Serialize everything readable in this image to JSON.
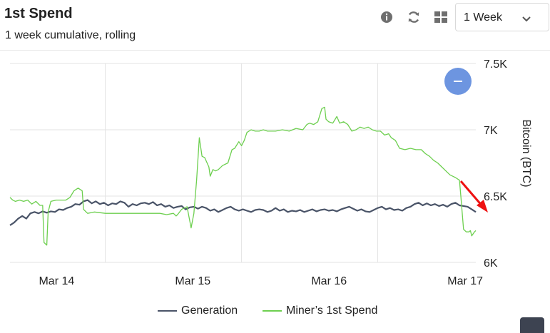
{
  "header": {
    "title": "1st Spend",
    "subtitle": "1 week cumulative, rolling"
  },
  "toolbar": {
    "info_icon": "info-icon",
    "refresh_icon": "refresh-icon",
    "grid_icon": "grid-icon",
    "range_select": {
      "value": "1 Week",
      "icon": "chevron-down-icon"
    }
  },
  "colors": {
    "generation": "#4a5468",
    "miner_first_spend": "#6dcf4f",
    "grid": "#e3e3e3",
    "zoom_button": "#6d95e0",
    "annotation_arrow": "#ee1111"
  },
  "chart_data": {
    "type": "line",
    "title": "",
    "ylabel": "Bitcoin (BTC)",
    "xlabel": "",
    "ylim": [
      6000,
      7500
    ],
    "xlim": [
      0,
      3.42
    ],
    "x_ticks": [
      {
        "x": 0.4,
        "label": "Mar 14"
      },
      {
        "x": 1.4,
        "label": "Mar 15"
      },
      {
        "x": 2.4,
        "label": "Mar 16"
      },
      {
        "x": 3.4,
        "label": "Mar 17"
      }
    ],
    "y_ticks": [
      {
        "y": 6000,
        "label": "6K"
      },
      {
        "y": 6500,
        "label": "6.5K"
      },
      {
        "y": 7000,
        "label": "7K"
      },
      {
        "y": 7500,
        "label": "7.5K"
      }
    ],
    "grid": true,
    "legend_position": "bottom",
    "series": [
      {
        "name": "Generation",
        "points": [
          [
            0.0,
            6280
          ],
          [
            0.03,
            6300
          ],
          [
            0.06,
            6330
          ],
          [
            0.09,
            6350
          ],
          [
            0.12,
            6330
          ],
          [
            0.15,
            6370
          ],
          [
            0.18,
            6380
          ],
          [
            0.21,
            6370
          ],
          [
            0.24,
            6385
          ],
          [
            0.27,
            6375
          ],
          [
            0.3,
            6385
          ],
          [
            0.33,
            6380
          ],
          [
            0.36,
            6400
          ],
          [
            0.39,
            6395
          ],
          [
            0.42,
            6410
          ],
          [
            0.45,
            6420
          ],
          [
            0.48,
            6440
          ],
          [
            0.51,
            6435
          ],
          [
            0.54,
            6460
          ],
          [
            0.57,
            6470
          ],
          [
            0.6,
            6445
          ],
          [
            0.63,
            6460
          ],
          [
            0.66,
            6440
          ],
          [
            0.69,
            6450
          ],
          [
            0.72,
            6430
          ],
          [
            0.75,
            6445
          ],
          [
            0.78,
            6440
          ],
          [
            0.81,
            6460
          ],
          [
            0.84,
            6450
          ],
          [
            0.87,
            6420
          ],
          [
            0.9,
            6440
          ],
          [
            0.93,
            6430
          ],
          [
            0.96,
            6445
          ],
          [
            0.99,
            6450
          ],
          [
            1.02,
            6440
          ],
          [
            1.05,
            6455
          ],
          [
            1.08,
            6430
          ],
          [
            1.11,
            6440
          ],
          [
            1.14,
            6420
          ],
          [
            1.17,
            6430
          ],
          [
            1.2,
            6410
          ],
          [
            1.23,
            6420
          ],
          [
            1.26,
            6425
          ],
          [
            1.29,
            6400
          ],
          [
            1.32,
            6415
          ],
          [
            1.35,
            6420
          ],
          [
            1.38,
            6405
          ],
          [
            1.41,
            6420
          ],
          [
            1.44,
            6410
          ],
          [
            1.47,
            6390
          ],
          [
            1.5,
            6400
          ],
          [
            1.53,
            6380
          ],
          [
            1.56,
            6395
          ],
          [
            1.59,
            6410
          ],
          [
            1.62,
            6420
          ],
          [
            1.65,
            6400
          ],
          [
            1.68,
            6390
          ],
          [
            1.71,
            6400
          ],
          [
            1.74,
            6390
          ],
          [
            1.77,
            6380
          ],
          [
            1.8,
            6395
          ],
          [
            1.83,
            6400
          ],
          [
            1.86,
            6395
          ],
          [
            1.89,
            6380
          ],
          [
            1.92,
            6390
          ],
          [
            1.95,
            6410
          ],
          [
            1.98,
            6390
          ],
          [
            2.01,
            6400
          ],
          [
            2.04,
            6380
          ],
          [
            2.07,
            6390
          ],
          [
            2.1,
            6385
          ],
          [
            2.13,
            6395
          ],
          [
            2.16,
            6380
          ],
          [
            2.19,
            6390
          ],
          [
            2.22,
            6400
          ],
          [
            2.25,
            6385
          ],
          [
            2.28,
            6395
          ],
          [
            2.31,
            6400
          ],
          [
            2.34,
            6390
          ],
          [
            2.37,
            6395
          ],
          [
            2.4,
            6385
          ],
          [
            2.43,
            6400
          ],
          [
            2.46,
            6410
          ],
          [
            2.49,
            6420
          ],
          [
            2.52,
            6405
          ],
          [
            2.55,
            6390
          ],
          [
            2.58,
            6400
          ],
          [
            2.61,
            6385
          ],
          [
            2.64,
            6380
          ],
          [
            2.67,
            6395
          ],
          [
            2.7,
            6410
          ],
          [
            2.73,
            6420
          ],
          [
            2.76,
            6400
          ],
          [
            2.79,
            6410
          ],
          [
            2.82,
            6395
          ],
          [
            2.85,
            6400
          ],
          [
            2.88,
            6390
          ],
          [
            2.91,
            6410
          ],
          [
            2.94,
            6420
          ],
          [
            2.97,
            6440
          ],
          [
            3.0,
            6450
          ],
          [
            3.03,
            6430
          ],
          [
            3.06,
            6445
          ],
          [
            3.09,
            6430
          ],
          [
            3.12,
            6440
          ],
          [
            3.15,
            6425
          ],
          [
            3.18,
            6435
          ],
          [
            3.21,
            6420
          ],
          [
            3.24,
            6440
          ],
          [
            3.27,
            6450
          ],
          [
            3.3,
            6430
          ],
          [
            3.33,
            6425
          ],
          [
            3.36,
            6420
          ],
          [
            3.39,
            6400
          ],
          [
            3.42,
            6380
          ]
        ]
      },
      {
        "name": "Miner’s 1st Spend",
        "points": [
          [
            0.0,
            6490
          ],
          [
            0.02,
            6470
          ],
          [
            0.04,
            6460
          ],
          [
            0.07,
            6470
          ],
          [
            0.1,
            6460
          ],
          [
            0.13,
            6470
          ],
          [
            0.16,
            6440
          ],
          [
            0.19,
            6460
          ],
          [
            0.22,
            6430
          ],
          [
            0.24,
            6430
          ],
          [
            0.25,
            6150
          ],
          [
            0.27,
            6130
          ],
          [
            0.28,
            6380
          ],
          [
            0.3,
            6460
          ],
          [
            0.34,
            6470
          ],
          [
            0.38,
            6470
          ],
          [
            0.41,
            6470
          ],
          [
            0.44,
            6490
          ],
          [
            0.47,
            6540
          ],
          [
            0.5,
            6560
          ],
          [
            0.53,
            6540
          ],
          [
            0.54,
            6400
          ],
          [
            0.57,
            6370
          ],
          [
            0.62,
            6380
          ],
          [
            0.7,
            6370
          ],
          [
            0.8,
            6370
          ],
          [
            0.9,
            6370
          ],
          [
            1.0,
            6370
          ],
          [
            1.05,
            6370
          ],
          [
            1.1,
            6370
          ],
          [
            1.15,
            6360
          ],
          [
            1.2,
            6370
          ],
          [
            1.22,
            6350
          ],
          [
            1.23,
            6360
          ],
          [
            1.26,
            6400
          ],
          [
            1.3,
            6420
          ],
          [
            1.33,
            6260
          ],
          [
            1.35,
            6370
          ],
          [
            1.37,
            6620
          ],
          [
            1.39,
            6940
          ],
          [
            1.41,
            6800
          ],
          [
            1.43,
            6790
          ],
          [
            1.46,
            6720
          ],
          [
            1.47,
            6650
          ],
          [
            1.49,
            6700
          ],
          [
            1.51,
            6690
          ],
          [
            1.53,
            6700
          ],
          [
            1.56,
            6730
          ],
          [
            1.6,
            6750
          ],
          [
            1.63,
            6850
          ],
          [
            1.65,
            6860
          ],
          [
            1.68,
            6910
          ],
          [
            1.7,
            6880
          ],
          [
            1.72,
            6920
          ],
          [
            1.74,
            6980
          ],
          [
            1.77,
            7000
          ],
          [
            1.8,
            6990
          ],
          [
            1.83,
            6990
          ],
          [
            1.86,
            7000
          ],
          [
            1.89,
            6990
          ],
          [
            1.92,
            6990
          ],
          [
            1.95,
            6990
          ],
          [
            2.0,
            7000
          ],
          [
            2.05,
            6990
          ],
          [
            2.1,
            7010
          ],
          [
            2.15,
            7000
          ],
          [
            2.18,
            7040
          ],
          [
            2.2,
            7050
          ],
          [
            2.23,
            7040
          ],
          [
            2.26,
            7060
          ],
          [
            2.29,
            7160
          ],
          [
            2.31,
            7170
          ],
          [
            2.32,
            7080
          ],
          [
            2.34,
            7060
          ],
          [
            2.37,
            7050
          ],
          [
            2.4,
            7100
          ],
          [
            2.42,
            7050
          ],
          [
            2.45,
            7060
          ],
          [
            2.48,
            7040
          ],
          [
            2.51,
            6990
          ],
          [
            2.54,
            7000
          ],
          [
            2.57,
            7020
          ],
          [
            2.6,
            7010
          ],
          [
            2.63,
            7020
          ],
          [
            2.66,
            7000
          ],
          [
            2.69,
            6990
          ],
          [
            2.72,
            6990
          ],
          [
            2.75,
            6960
          ],
          [
            2.78,
            6970
          ],
          [
            2.8,
            6940
          ],
          [
            2.83,
            6920
          ],
          [
            2.86,
            6860
          ],
          [
            2.9,
            6850
          ],
          [
            2.94,
            6860
          ],
          [
            2.98,
            6850
          ],
          [
            3.02,
            6850
          ],
          [
            3.05,
            6820
          ],
          [
            3.08,
            6800
          ],
          [
            3.11,
            6770
          ],
          [
            3.14,
            6750
          ],
          [
            3.17,
            6720
          ],
          [
            3.2,
            6690
          ],
          [
            3.23,
            6660
          ],
          [
            3.27,
            6640
          ],
          [
            3.3,
            6620
          ],
          [
            3.31,
            6500
          ],
          [
            3.33,
            6250
          ],
          [
            3.35,
            6230
          ],
          [
            3.37,
            6230
          ],
          [
            3.38,
            6240
          ],
          [
            3.39,
            6200
          ],
          [
            3.41,
            6230
          ],
          [
            3.42,
            6240
          ]
        ]
      }
    ]
  }
}
